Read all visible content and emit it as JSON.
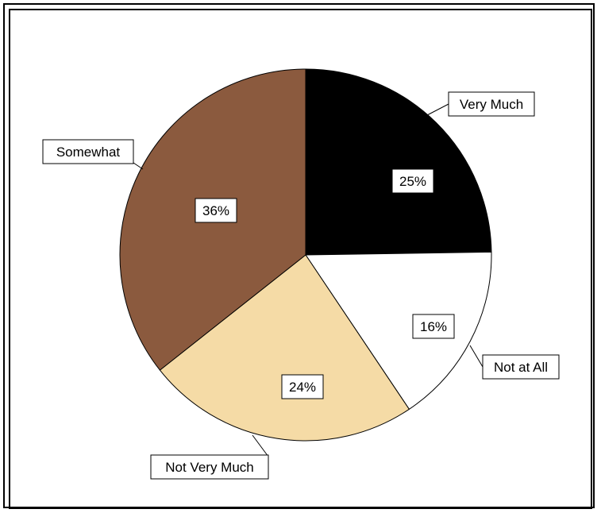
{
  "chart_data": {
    "type": "pie",
    "slices": [
      {
        "label": "Very Much",
        "value": 25,
        "value_label": "25%",
        "color": "#000000"
      },
      {
        "label": "Not at All",
        "value": 16,
        "value_label": "16%",
        "color": "#ffffff"
      },
      {
        "label": "Not Very Much",
        "value": 24,
        "value_label": "24%",
        "color": "#f5dba6"
      },
      {
        "label": "Somewhat",
        "value": 36,
        "value_label": "36%",
        "color": "#8b5a3e"
      }
    ],
    "start": "12 o'clock",
    "direction": "clockwise",
    "legend": "none (callout labels)"
  }
}
